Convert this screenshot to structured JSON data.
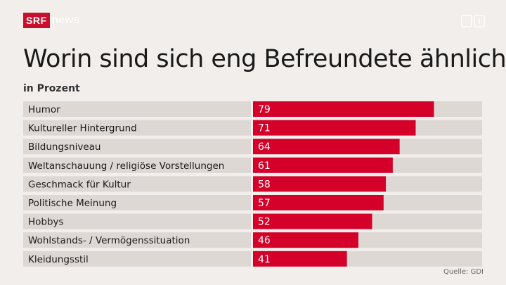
{
  "header": {
    "brand_srf": "SRF",
    "brand_news": "news",
    "corner_icon": "broadcast-logo-icon"
  },
  "chart_data": {
    "type": "bar",
    "orientation": "horizontal",
    "title": "Worin sind sich eng Befreundete ähnlich?",
    "subtitle": "in Prozent",
    "categories": [
      "Humor",
      "Kultureller Hintergrund",
      "Bildungsniveau",
      "Weltanschauung / religiöse Vorstellungen",
      "Geschmack für Kultur",
      "Politische Meinung",
      "Hobbys",
      "Wohlstands- / Vermögenssituation",
      "Kleidungsstil"
    ],
    "values": [
      79,
      71,
      64,
      61,
      58,
      57,
      52,
      46,
      41
    ],
    "xlim": [
      0,
      100
    ],
    "grid": false,
    "legend": "none",
    "bar_color": "#d4002a",
    "track_color": "#ded8d4",
    "value_label_color": "#ffffff"
  },
  "footer": {
    "source": "Quelle: GDI"
  }
}
